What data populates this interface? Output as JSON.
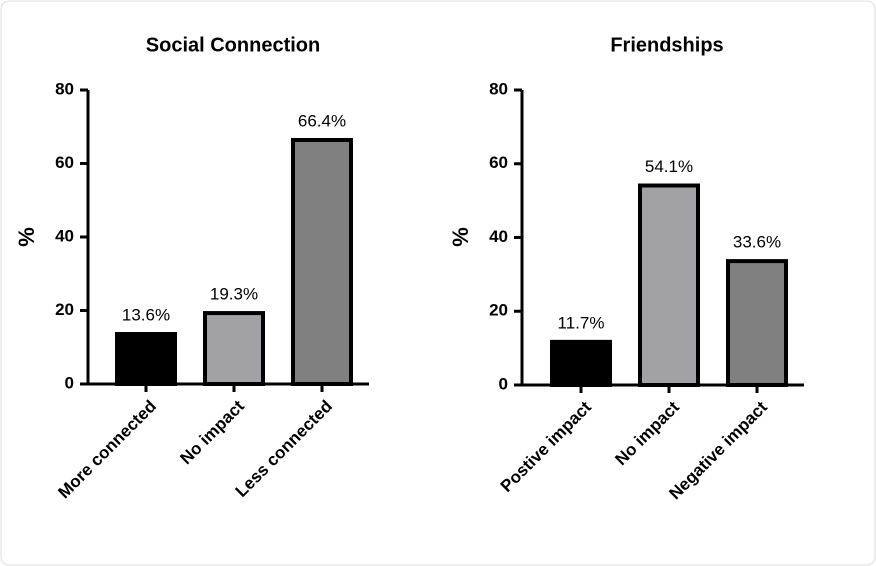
{
  "chart_data": [
    {
      "type": "bar",
      "title": "Social Connection",
      "y_label": "%",
      "categories": [
        "More connected",
        "No impact",
        "Less connected"
      ],
      "values": [
        13.6,
        19.3,
        66.4
      ],
      "value_labels": [
        "13.6%",
        "19.3%",
        "66.4%"
      ],
      "colors": [
        "#000000",
        "#a1a1a6",
        "#808080"
      ],
      "ylim": [
        0,
        80
      ],
      "yticks": [
        0,
        20,
        40,
        60,
        80
      ]
    },
    {
      "type": "bar",
      "title": "Friendships",
      "y_label": "%",
      "categories": [
        "Postive impact",
        "No impact",
        "Negative impact"
      ],
      "values": [
        11.7,
        54.1,
        33.6
      ],
      "value_labels": [
        "11.7%",
        "54.1%",
        "33.6%"
      ],
      "colors": [
        "#000000",
        "#a1a1a6",
        "#808080"
      ],
      "ylim": [
        0,
        80
      ],
      "yticks": [
        0,
        20,
        40,
        60,
        80
      ]
    }
  ]
}
